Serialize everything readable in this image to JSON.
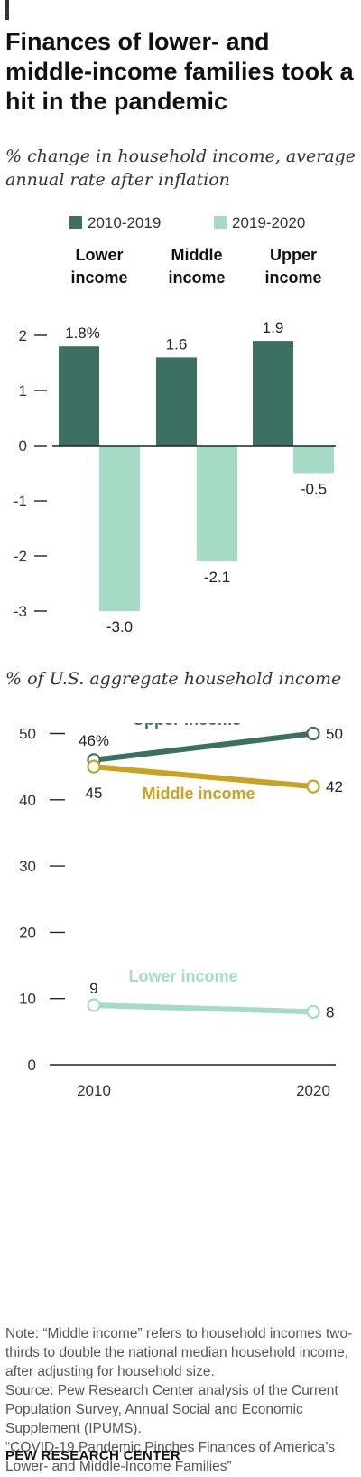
{
  "title": "Finances of lower- and middle-income families took a hit in the pandemic",
  "colors": {
    "dark_green": "#3b7062",
    "light_green": "#a5dbc5",
    "gold": "#c9a21f",
    "axis": "#222222"
  },
  "chart_data": [
    {
      "type": "bar",
      "subtitle": "% change in household income, average annual rate after inflation",
      "categories": [
        "Lower income",
        "Middle income",
        "Upper income"
      ],
      "series": [
        {
          "name": "2010-2019",
          "values": [
            1.8,
            1.6,
            1.9
          ],
          "labels": [
            "1.8%",
            "1.6",
            "1.9"
          ]
        },
        {
          "name": "2019-2020",
          "values": [
            -3.0,
            -2.1,
            -0.5
          ],
          "labels": [
            "-3.0",
            "-2.1",
            "-0.5"
          ]
        }
      ],
      "yticks": [
        2,
        1,
        0,
        -1,
        -2,
        -3
      ],
      "ylim": [
        -3.3,
        2.3
      ],
      "legend_position": "top"
    },
    {
      "type": "line",
      "subtitle": "% of U.S. aggregate household income",
      "x": [
        2010,
        2020
      ],
      "series": [
        {
          "name": "Upper income",
          "values": [
            46,
            50
          ],
          "labels": [
            "46%",
            "50"
          ]
        },
        {
          "name": "Middle income",
          "values": [
            45,
            42
          ],
          "labels": [
            "45",
            "42"
          ]
        },
        {
          "name": "Lower income",
          "values": [
            9,
            8
          ],
          "labels": [
            "9",
            "8"
          ]
        }
      ],
      "yticks": [
        50,
        40,
        30,
        20,
        10,
        0
      ],
      "ylim": [
        0,
        55
      ]
    }
  ],
  "footer": {
    "note": "Note: “Middle income” refers to household incomes two-thirds to double the national median household income, after adjusting for household size.",
    "source": "Source: Pew Research Center analysis of the Current Population Survey, Annual Social and Economic Supplement (IPUMS).",
    "report": "“COVID-19 Pandemic Pinches Finances of America’s Lower- and Middle-Income Families”",
    "brand": "PEW RESEARCH CENTER"
  }
}
